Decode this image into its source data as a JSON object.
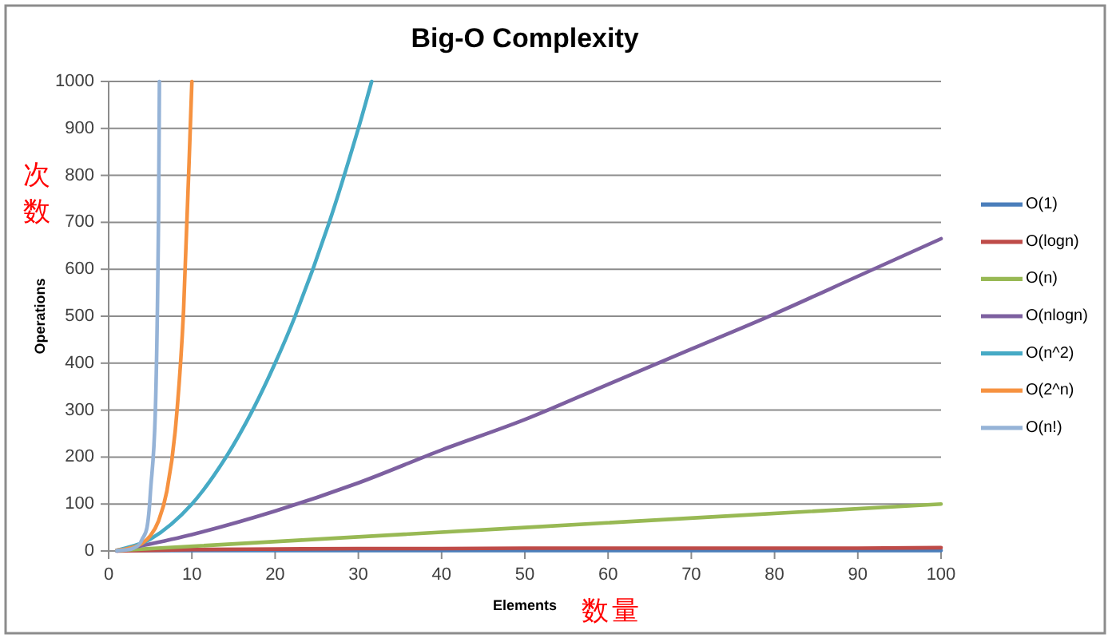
{
  "chart_data": {
    "type": "line",
    "title": "Big-O Complexity",
    "xlabel": "Elements",
    "ylabel": "Operations",
    "annotations": [
      "次数",
      "数量"
    ],
    "xlim": [
      0,
      100
    ],
    "xticks": [
      0,
      10,
      20,
      30,
      40,
      50,
      60,
      70,
      80,
      90,
      100
    ],
    "ylim": [
      0,
      1000
    ],
    "yticks": [
      0,
      100,
      200,
      300,
      400,
      500,
      600,
      700,
      800,
      900,
      1000
    ],
    "grid": "y",
    "legend": "right",
    "series": [
      {
        "name": "O(1)",
        "color": "#4a7ebb",
        "x": [
          1,
          100
        ],
        "values": [
          1,
          1
        ]
      },
      {
        "name": "O(logn)",
        "color": "#be4b48",
        "x": [
          1,
          10,
          20,
          30,
          40,
          50,
          60,
          70,
          80,
          90,
          100
        ],
        "values": [
          0,
          3,
          4,
          5,
          5,
          6,
          6,
          6,
          6,
          6,
          7
        ]
      },
      {
        "name": "O(n)",
        "color": "#98b954",
        "x": [
          1,
          50,
          100
        ],
        "values": [
          1,
          50,
          100
        ]
      },
      {
        "name": "O(nlogn)",
        "color": "#7d60a0",
        "x": [
          1,
          10,
          20,
          30,
          40,
          50,
          60,
          70,
          80,
          90,
          100
        ],
        "values": [
          0,
          35,
          85,
          145,
          215,
          280,
          355,
          430,
          505,
          585,
          665
        ]
      },
      {
        "name": "O(n^2)",
        "color": "#46aac5",
        "x": [
          1,
          5,
          10,
          14.1,
          17.3,
          20,
          22.4,
          26.5,
          30,
          31.6
        ],
        "values": [
          1,
          25,
          100,
          200,
          300,
          400,
          500,
          700,
          900,
          1000
        ]
      },
      {
        "name": "O(2^n)",
        "color": "#f69240",
        "x": [
          1,
          2,
          3,
          4,
          5,
          6,
          7,
          8,
          9,
          10
        ],
        "values": [
          2,
          4,
          8,
          16,
          32,
          64,
          128,
          256,
          512,
          1000
        ]
      },
      {
        "name": "O(n!)",
        "color": "#95b3d7",
        "x": [
          1,
          2,
          3,
          4,
          5,
          6,
          6.1
        ],
        "values": [
          1,
          2,
          6,
          24,
          120,
          720,
          1000
        ]
      }
    ]
  }
}
